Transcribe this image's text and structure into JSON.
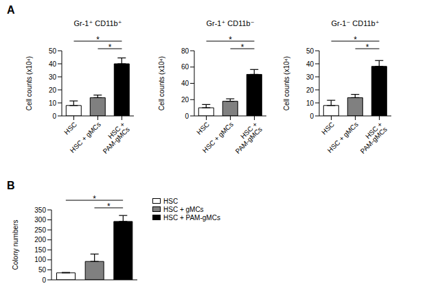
{
  "chart_data": [
    {
      "type": "bar",
      "panel_label": "A",
      "title": "Gr-1⁺ CD11b⁺",
      "ylabel": "Cell counts (x10⁴)",
      "categories": [
        "HSC",
        "HSC + gMCs",
        "HSC + PAM-gMCs"
      ],
      "values": [
        8,
        14,
        40
      ],
      "errors": [
        3.5,
        2,
        4.5
      ],
      "colors": [
        "#ffffff",
        "#808080",
        "#000000"
      ],
      "ylim": [
        0,
        50
      ],
      "yticks": [
        0,
        10,
        20,
        30,
        40,
        50
      ],
      "significance": [
        {
          "from": "HSC",
          "to": "HSC + PAM-gMCs",
          "label": "*"
        },
        {
          "from": "HSC + gMCs",
          "to": "HSC + PAM-gMCs",
          "label": "*"
        }
      ]
    },
    {
      "type": "bar",
      "title": "Gr-1⁺ CD11b⁻",
      "ylabel": "Cell counts (x10⁴)",
      "categories": [
        "HSC",
        "HSC + gMCs",
        "HSC + PAM-gMCs"
      ],
      "values": [
        10,
        18,
        51
      ],
      "errors": [
        4,
        3,
        6
      ],
      "colors": [
        "#ffffff",
        "#808080",
        "#000000"
      ],
      "ylim": [
        0,
        80
      ],
      "yticks": [
        0,
        20,
        40,
        60,
        80
      ],
      "significance": [
        {
          "from": "HSC",
          "to": "HSC + PAM-gMCs",
          "label": "*"
        },
        {
          "from": "HSC + gMCs",
          "to": "HSC + PAM-gMCs",
          "label": "*"
        }
      ]
    },
    {
      "type": "bar",
      "title": "Gr-1⁻ CD11b⁺",
      "ylabel": "Cell counts (x10⁴)",
      "categories": [
        "HSC",
        "HSC + gMCs",
        "HSC + PAM-gMCs"
      ],
      "values": [
        8,
        14,
        38
      ],
      "errors": [
        4,
        2.5,
        4.5
      ],
      "colors": [
        "#ffffff",
        "#808080",
        "#000000"
      ],
      "ylim": [
        0,
        50
      ],
      "yticks": [
        0,
        10,
        20,
        30,
        40,
        50
      ],
      "significance": [
        {
          "from": "HSC",
          "to": "HSC + PAM-gMCs",
          "label": "*"
        },
        {
          "from": "HSC + gMCs",
          "to": "HSC + PAM-gMCs",
          "label": "*"
        }
      ]
    },
    {
      "type": "bar",
      "panel_label": "B",
      "ylabel": "Colony numbers",
      "categories": [
        "HSC",
        "HSC + gMCs",
        "HSC + PAM-gMCs"
      ],
      "values": [
        35,
        92,
        292
      ],
      "errors": [
        2,
        37,
        30
      ],
      "colors": [
        "#ffffff",
        "#808080",
        "#000000"
      ],
      "ylim": [
        0,
        350
      ],
      "yticks": [
        0,
        50,
        100,
        150,
        200,
        250,
        300,
        350
      ],
      "tick_labels": "y",
      "legend": "right",
      "significance": [
        {
          "from": "HSC",
          "to": "HSC + PAM-gMCs",
          "label": "*"
        },
        {
          "from": "HSC + gMCs",
          "to": "HSC + PAM-gMCs",
          "label": "*"
        }
      ]
    }
  ]
}
